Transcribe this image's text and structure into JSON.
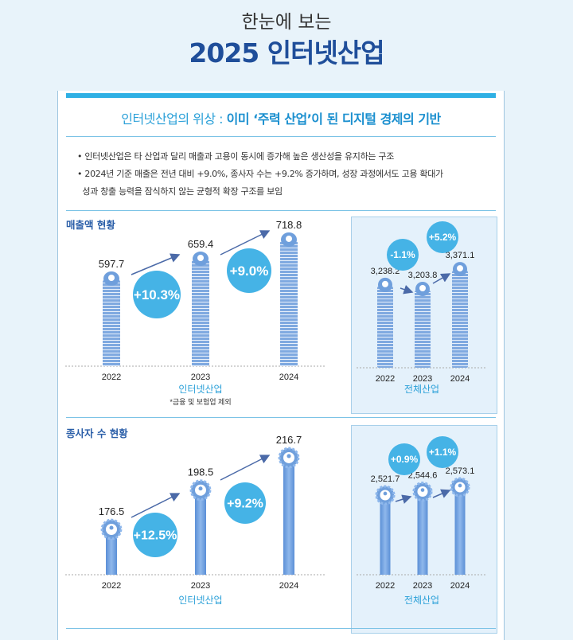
{
  "header": {
    "pre_title": "한눈에 보는",
    "title": "2025 인터넷산업"
  },
  "headline": {
    "prefix": "인터넷산업의 위상 : ",
    "emphasis": "이미 ‘주력 산업’이 된 디지털 경제의 기반"
  },
  "bullets": [
    "• 인터넷산업은 타 산업과 달리 매출과 고용이 동시에 증가해 높은 생산성을 유지하는 구조",
    "• 2024년 기준 매출은 전년 대비 +9.0%, 종사자 수는 +9.2% 증가하며, 성장 과정에서도 고용 확대가",
    "  성과 창출 능력을 잠식하지 않는 균형적 확장 구조를 보임"
  ],
  "sections": {
    "revenue": "매출액 현황",
    "employees": "종사자 수 현황"
  },
  "colors": {
    "accent": "#2fb0e4",
    "navy": "#1f4e9a",
    "bar": "#6f9fdc",
    "circle": "#45b3e6"
  },
  "chart_data": [
    {
      "type": "bar",
      "title": "매출액 현황",
      "xlabel": "인터넷산업",
      "note": "*금융 및 보험업 제외",
      "categories": [
        "2022",
        "2023",
        "2024"
      ],
      "values": [
        597.7,
        659.4,
        718.8
      ],
      "value_labels": [
        "597.7",
        "659.4",
        "718.8"
      ],
      "growth": [
        "+10.3%",
        "+9.0%"
      ],
      "icon": "money-bag-icon"
    },
    {
      "type": "bar",
      "xlabel": "전체산업",
      "categories": [
        "2022",
        "2023",
        "2024"
      ],
      "values": [
        3238.2,
        3203.8,
        3371.1
      ],
      "value_labels": [
        "3,238.2",
        "3,203.8",
        "3,371.1"
      ],
      "growth": [
        "-1.1%",
        "+5.2%"
      ],
      "icon": "money-bag-icon"
    },
    {
      "type": "bar",
      "title": "종사자 수 현황",
      "xlabel": "인터넷산업",
      "categories": [
        "2022",
        "2023",
        "2024"
      ],
      "values": [
        176.5,
        198.5,
        216.7
      ],
      "value_labels": [
        "176.5",
        "198.5",
        "216.7"
      ],
      "growth": [
        "+12.5%",
        "+9.2%"
      ],
      "icon": "gear-person-icon"
    },
    {
      "type": "bar",
      "xlabel": "전체산업",
      "categories": [
        "2022",
        "2023",
        "2024"
      ],
      "values": [
        2521.7,
        2544.6,
        2573.1
      ],
      "value_labels": [
        "2,521.7",
        "2,544.6",
        "2,573.1"
      ],
      "growth": [
        "+0.9%",
        "+1.1%"
      ],
      "icon": "gear-person-icon"
    }
  ]
}
